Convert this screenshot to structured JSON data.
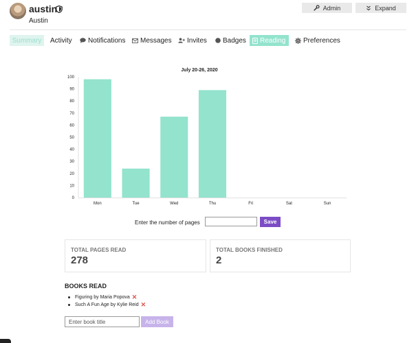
{
  "user": {
    "username": "austin",
    "full_name": "Austin",
    "badge_icon": "shield-icon"
  },
  "header": {
    "admin_label": "Admin",
    "expand_label": "Expand"
  },
  "nav": {
    "items": [
      {
        "label": "Summary",
        "icon": ""
      },
      {
        "label": "Activity",
        "icon": ""
      },
      {
        "label": "Notifications",
        "icon": "speech-bubble-icon"
      },
      {
        "label": "Messages",
        "icon": "envelope-icon"
      },
      {
        "label": "Invites",
        "icon": "user-plus-icon"
      },
      {
        "label": "Badges",
        "icon": "circle-icon"
      },
      {
        "label": "Reading",
        "icon": "book-icon"
      },
      {
        "label": "Preferences",
        "icon": "gear-icon"
      }
    ],
    "active": "Reading"
  },
  "chart_data": {
    "type": "bar",
    "title": "July 20-26, 2020",
    "categories": [
      "Mon",
      "Tue",
      "Wed",
      "Thu",
      "Fri",
      "Sat",
      "Sun"
    ],
    "values": [
      98,
      24,
      67,
      89,
      0,
      0,
      0
    ],
    "ylim": [
      0,
      100
    ],
    "yticks": [
      0,
      10,
      20,
      30,
      40,
      50,
      60,
      70,
      80,
      90,
      100
    ],
    "xlabel": "",
    "ylabel": "",
    "color": "#93e3cd",
    "grid": false
  },
  "pages_form": {
    "label": "Enter the number of pages",
    "input_value": "",
    "save_label": "Save"
  },
  "stats": {
    "pages_label": "TOTAL PAGES READ",
    "pages_value": "278",
    "books_label": "TOTAL BOOKS FINISHED",
    "books_value": "2"
  },
  "books": {
    "heading": "BOOKS READ",
    "items": [
      "Figuring by Maria Popova",
      "Such A Fun Age by Kylie Reid"
    ],
    "remove_glyph": "✕",
    "input_placeholder": "Enter book title",
    "add_label": "Add Book"
  },
  "colors": {
    "accent": "#93e3cd",
    "save_button": "#7b4cc5",
    "add_button": "#c7b3ea",
    "remove": "#d9534f"
  }
}
